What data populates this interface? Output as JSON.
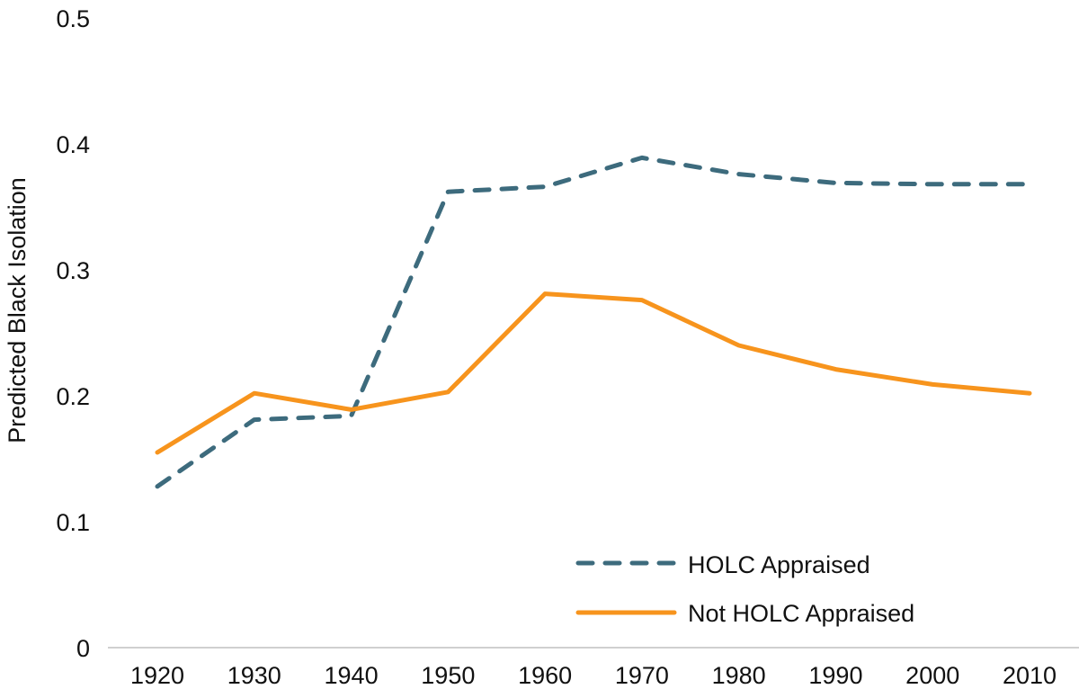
{
  "chart_data": {
    "type": "line",
    "title": "",
    "xlabel": "",
    "ylabel": "Predicted Black Isolation",
    "ylim": [
      0,
      0.5
    ],
    "yticks": [
      "0",
      "0.1",
      "0.2",
      "0.3",
      "0.4",
      "0.5"
    ],
    "categories": [
      "1920",
      "1930",
      "1940",
      "1950",
      "1960",
      "1970",
      "1980",
      "1990",
      "2000",
      "2010"
    ],
    "grid": false,
    "legend_position": "bottom-right",
    "series": [
      {
        "name": "HOLC Appraised",
        "style": "dashed",
        "color": "#3d6b7d",
        "values": [
          0.128,
          0.181,
          0.184,
          0.362,
          0.366,
          0.389,
          0.376,
          0.369,
          0.368,
          0.368
        ]
      },
      {
        "name": "Not HOLC Appraised",
        "style": "solid",
        "color": "#f7941d",
        "values": [
          0.155,
          0.202,
          0.189,
          0.203,
          0.281,
          0.276,
          0.24,
          0.221,
          0.209,
          0.202
        ]
      }
    ]
  }
}
